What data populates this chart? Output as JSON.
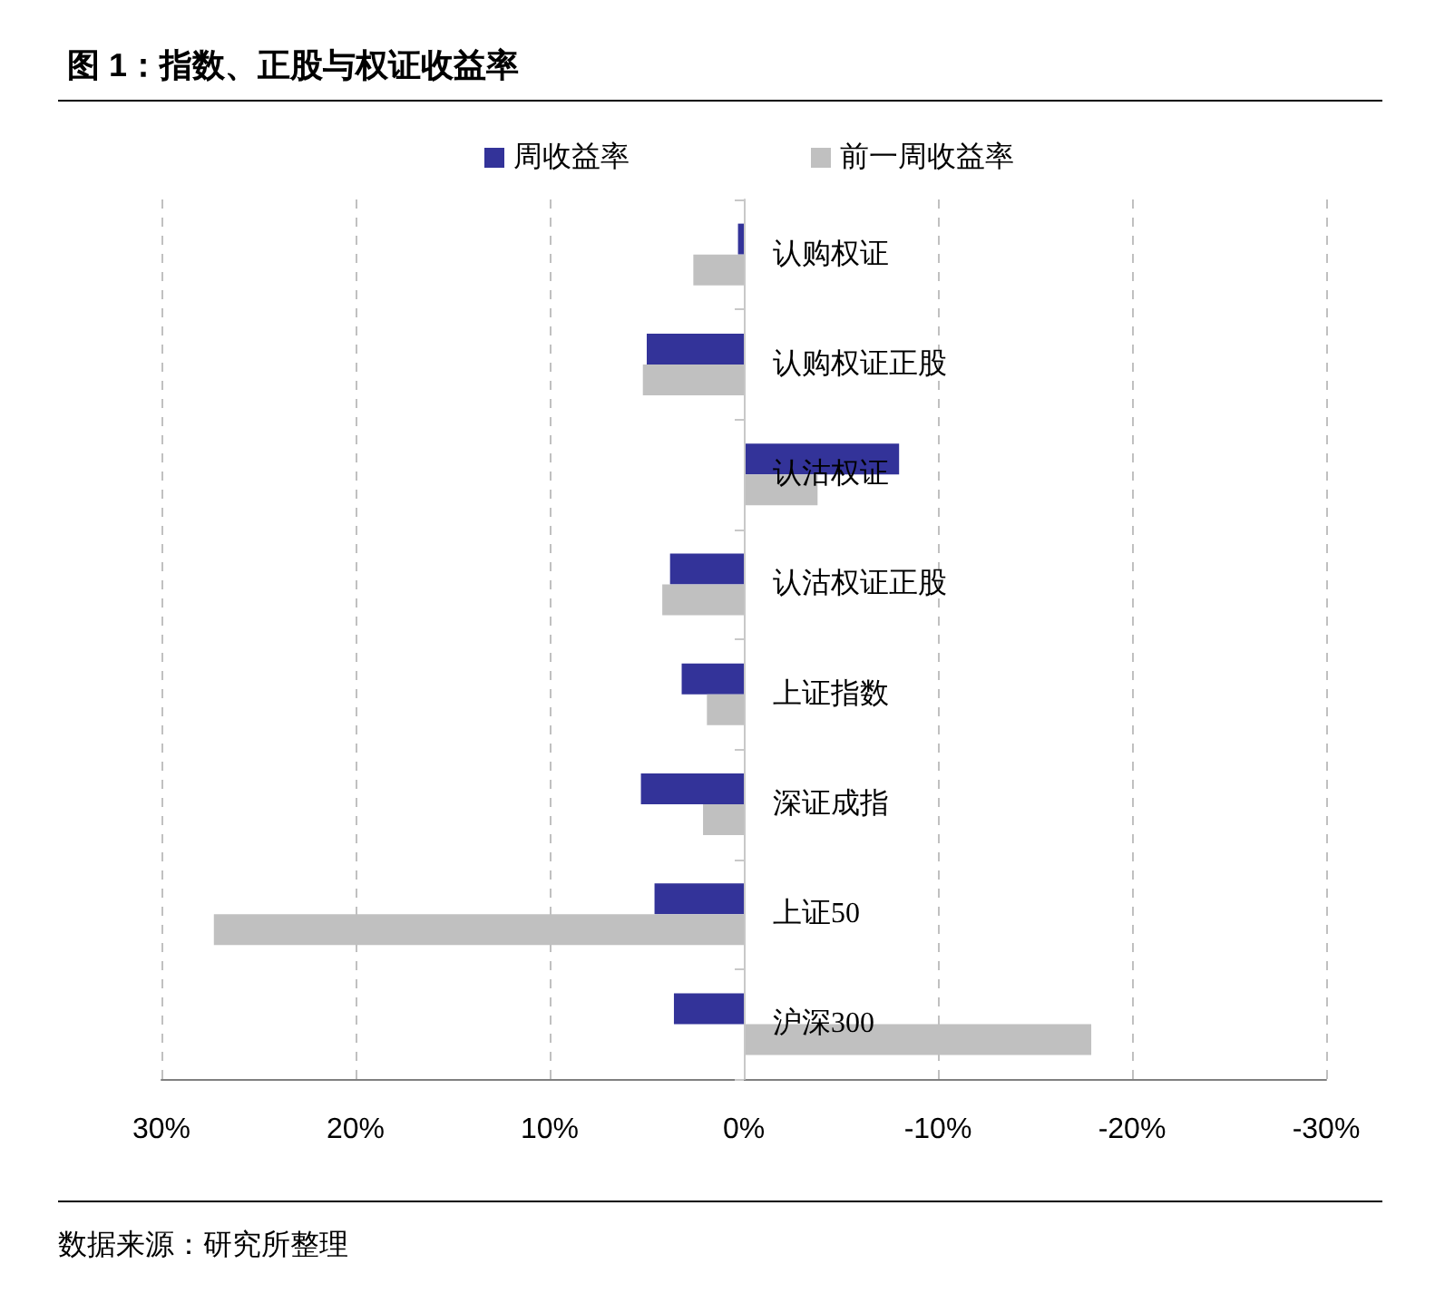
{
  "chart_data": {
    "type": "bar",
    "orientation": "horizontal",
    "title": "图 1：指数、正股与权证收益率",
    "categories": [
      "认购权证",
      "认购权证正股",
      "认沽权证",
      "认沽权证正股",
      "上证指数",
      "深证成指",
      "上证50",
      "沪深300"
    ],
    "series": [
      {
        "name": "周收益率",
        "color": "#333399",
        "values": [
          0.3,
          5.0,
          -8.0,
          3.8,
          3.2,
          5.3,
          4.6,
          3.6
        ]
      },
      {
        "name": "前一周收益率",
        "color": "#c0c0c0",
        "values": [
          2.6,
          5.2,
          -3.8,
          4.2,
          1.9,
          2.1,
          27.3,
          -17.9
        ]
      }
    ],
    "xlim": [
      30,
      -30
    ],
    "xticks": [
      {
        "value": 30,
        "label": "30%"
      },
      {
        "value": 20,
        "label": "20%"
      },
      {
        "value": 10,
        "label": "10%"
      },
      {
        "value": 0,
        "label": "0%"
      },
      {
        "value": -10,
        "label": "-10%"
      },
      {
        "value": -20,
        "label": "-20%"
      },
      {
        "value": -30,
        "label": "-30%"
      }
    ],
    "grid": "x",
    "legend": "top",
    "annotations": [
      "数据来源：研究所整理"
    ]
  }
}
